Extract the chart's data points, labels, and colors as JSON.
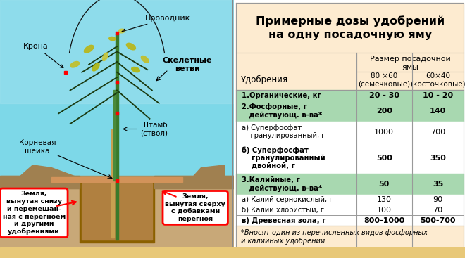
{
  "title": "Примерные дозы удобрений\nна одну посадочную яму",
  "col_header_main": "Размер посадочной\nямы",
  "col1_header": "80 ×60\n(семечковые)",
  "col2_header": "60×40\n(косточковые)",
  "col_label": "Удобрения",
  "rows": [
    {
      "label": "1.Органические, кг",
      "v1": "20 - 30",
      "v2": "10 - 20",
      "bold": true,
      "green": true
    },
    {
      "label": "2.Фосфорные, г\n   действующ. в-ва*",
      "v1": "200",
      "v2": "140",
      "bold": true,
      "green": true
    },
    {
      "label": "а) Суперфосфат\n    гранулированный, г",
      "v1": "1000",
      "v2": "700",
      "bold": false,
      "green": false
    },
    {
      "label": "б) Суперфосфат\n    гранулированный\n    двойной, г",
      "v1": "500",
      "v2": "350",
      "bold": true,
      "green": false
    },
    {
      "label": "3.Калийные, г\n   действующ. в-ва*",
      "v1": "50",
      "v2": "35",
      "bold": true,
      "green": true
    },
    {
      "label": "а) Калий сернокислый, г",
      "v1": "130",
      "v2": "90",
      "bold": false,
      "green": false
    },
    {
      "label": "б) Калий хлористый, г",
      "v1": "100",
      "v2": "70",
      "bold": false,
      "green": false
    },
    {
      "label": "в) Древесная зола, г",
      "v1": "800-1000",
      "v2": "500-700",
      "bold": true,
      "green": false
    }
  ],
  "footnote": "*Вносят один из перечисленных видов фосфорных\nи калийных удобрений",
  "sky_color": "#7dd8e8",
  "sky_color2": "#5ab8d0",
  "ground_color": "#c8a878",
  "pit_color": "#8B6000",
  "pit_fill_color": "#b08040",
  "plank_color": "#D2935A",
  "trunk_color": "#3a7a2a",
  "branch_color": "#1a3a10",
  "leaf_color": "#c8c840",
  "title_bg": "#FDEBD0",
  "header_bg": "#FDEBD0",
  "green_row_bg": "#A8D8B0",
  "white_row_bg": "#FFFFFF",
  "border_color": "#999999",
  "footnote_bg": "#FDEBD0",
  "sandy_color": "#e8c878"
}
